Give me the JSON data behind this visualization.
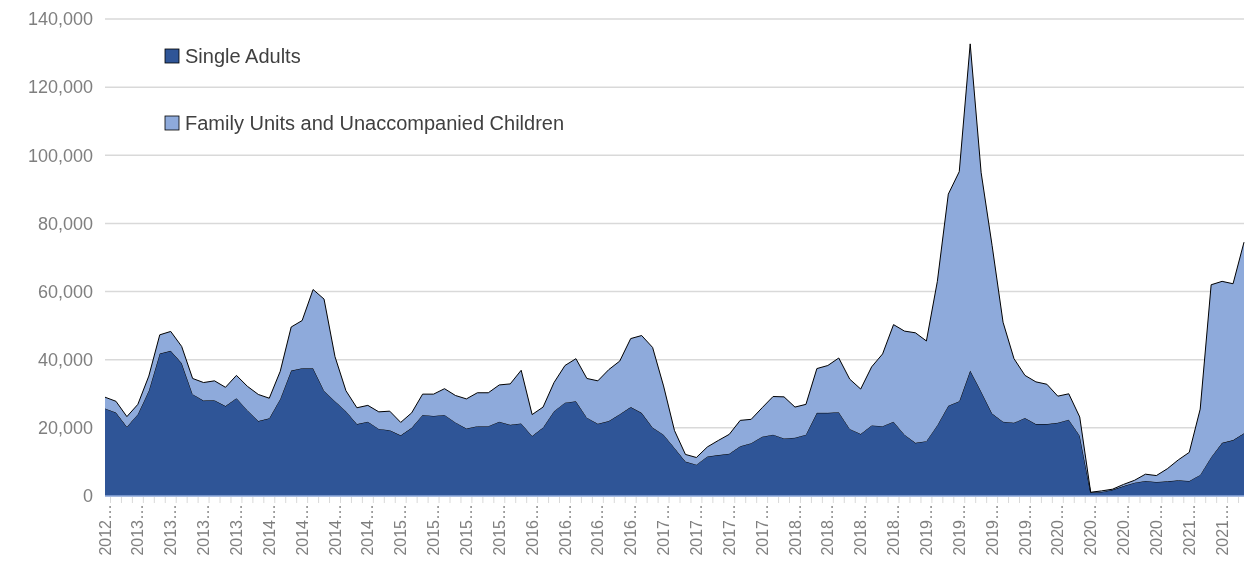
{
  "chart_data": {
    "type": "area",
    "stacked": true,
    "legend": "top left",
    "grid": "y",
    "categories": [
      "2012…",
      null,
      null,
      "2013…",
      null,
      null,
      "2013…",
      null,
      null,
      "2013…",
      null,
      null,
      "2013…",
      null,
      null,
      "2014…",
      null,
      null,
      "2014…",
      null,
      null,
      "2014…",
      null,
      null,
      "2014…",
      null,
      null,
      "2015…",
      null,
      null,
      "2015…",
      null,
      null,
      "2015…",
      null,
      null,
      "2015…",
      null,
      null,
      "2016…",
      null,
      null,
      "2016…",
      null,
      null,
      "2016…",
      null,
      null,
      "2016…",
      null,
      null,
      "2017…",
      null,
      null,
      "2017…",
      null,
      null,
      "2017…",
      null,
      null,
      "2017…",
      null,
      null,
      "2018…",
      null,
      null,
      "2018…",
      null,
      null,
      "2018…",
      null,
      null,
      "2018…",
      null,
      null,
      "2019…",
      null,
      null,
      "2019…",
      null,
      null,
      "2019…",
      null,
      null,
      "2019…",
      null,
      null,
      "2020…",
      null,
      null,
      "2020…",
      null,
      null,
      "2020…",
      null,
      null,
      "2020…",
      null,
      null,
      "2021…",
      null,
      null,
      "2021…",
      null,
      null
    ],
    "ylim": [
      0,
      140000
    ],
    "yticks": [
      {
        "value": 0,
        "label": "0"
      },
      {
        "value": 20000,
        "label": "20,000"
      },
      {
        "value": 40000,
        "label": "40,000"
      },
      {
        "value": 60000,
        "label": "60,000"
      },
      {
        "value": 80000,
        "label": "80,000"
      },
      {
        "value": 100000,
        "label": "100,000"
      },
      {
        "value": 120000,
        "label": "120,000"
      },
      {
        "value": 140000,
        "label": "140,000"
      }
    ],
    "series": [
      {
        "name": "Single Adults",
        "color": "#2f5597",
        "values": [
          25700,
          24500,
          20300,
          24000,
          30900,
          41800,
          42600,
          39000,
          29900,
          28000,
          28100,
          26400,
          28700,
          25200,
          22000,
          22800,
          28500,
          36800,
          37500,
          37500,
          30900,
          27800,
          24900,
          21100,
          21800,
          19700,
          19300,
          17800,
          20000,
          23800,
          23500,
          23800,
          21600,
          19800,
          20500,
          20500,
          21800,
          20900,
          21300,
          17600,
          20100,
          24900,
          27400,
          27800,
          23000,
          21200,
          22000,
          24000,
          26100,
          24400,
          20100,
          18000,
          14100,
          10100,
          9200,
          11600,
          12000,
          12400,
          14600,
          15500,
          17400,
          18000,
          16900,
          17100,
          18000,
          24400,
          24400,
          24600,
          19700,
          18200,
          20700,
          20500,
          21800,
          18000,
          15600,
          16100,
          20800,
          26500,
          27800,
          36800,
          30700,
          24200,
          21800,
          21500,
          22900,
          21100,
          21100,
          21500,
          22400,
          17700,
          1000,
          1200,
          1800,
          2900,
          3900,
          4400,
          4100,
          4300,
          4600,
          4400,
          6200,
          11400,
          15600,
          16400,
          18400
        ]
      },
      {
        "name": "Family Units and Unaccompanied Children",
        "color": "#8eaadb",
        "values": [
          3300,
          3300,
          3000,
          2900,
          4300,
          5500,
          5700,
          4900,
          4600,
          5300,
          5700,
          5500,
          6700,
          7000,
          7800,
          5900,
          8100,
          12800,
          14000,
          23100,
          26900,
          13100,
          6000,
          4800,
          4800,
          5000,
          5600,
          3800,
          4400,
          6100,
          6400,
          7700,
          7900,
          8700,
          9800,
          9800,
          10800,
          12000,
          15600,
          6300,
          6000,
          8400,
          10900,
          12500,
          11500,
          12600,
          15100,
          15600,
          20100,
          22700,
          23500,
          14300,
          5100,
          2100,
          2100,
          2800,
          4300,
          5700,
          7600,
          7000,
          8500,
          11200,
          12200,
          9000,
          8900,
          13000,
          13900,
          15900,
          14600,
          13200,
          17200,
          21200,
          28500,
          30400,
          32300,
          29400,
          42200,
          62100,
          67400,
          95900,
          64200,
          49300,
          29200,
          18800,
          12500,
          12400,
          11700,
          7800,
          7600,
          5500,
          100,
          300,
          200,
          500,
          700,
          2000,
          1900,
          3700,
          6000,
          8400,
          19300,
          50600,
          47400,
          45900,
          56100
        ]
      }
    ]
  }
}
